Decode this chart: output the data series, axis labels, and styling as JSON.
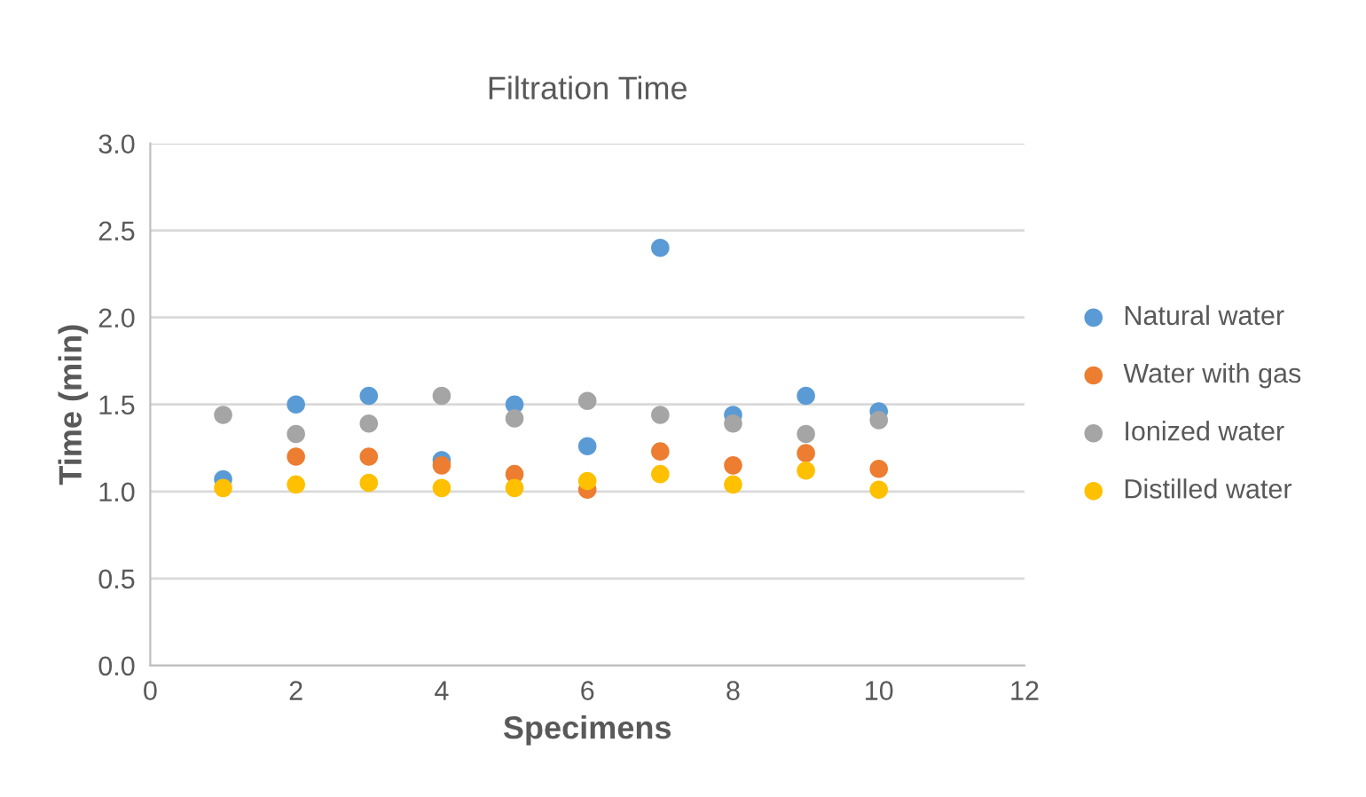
{
  "chart_data": {
    "type": "scatter",
    "title": "Filtration Time",
    "xlabel": "Specimens",
    "ylabel": "Time (min)",
    "xlim": [
      0,
      12
    ],
    "xticks": [
      0,
      2,
      4,
      6,
      8,
      10,
      12
    ],
    "ylim": [
      0,
      3.0
    ],
    "yticks": [
      {
        "value": 0,
        "label": "0.0"
      },
      {
        "value": 0.5,
        "label": "0.5"
      },
      {
        "value": 1.0,
        "label": "1.0"
      },
      {
        "value": 1.5,
        "label": "1.5"
      },
      {
        "value": 2.0,
        "label": "2.0"
      },
      {
        "value": 2.5,
        "label": "2.5"
      },
      {
        "value": 3.0,
        "label": "3.0"
      }
    ],
    "grid": "y",
    "legend": "right",
    "marker": "circle",
    "x": [
      1,
      2,
      3,
      4,
      5,
      6,
      7,
      8,
      9,
      10
    ],
    "series": [
      {
        "name": "Natural water",
        "color": "#5b9bd5",
        "values": [
          1.07,
          1.5,
          1.55,
          1.18,
          1.5,
          1.26,
          2.4,
          1.44,
          1.55,
          1.46
        ]
      },
      {
        "name": "Water with gas",
        "color": "#ed7d31",
        "values": [
          null,
          1.2,
          1.2,
          1.15,
          1.1,
          1.01,
          1.23,
          1.15,
          1.22,
          1.13
        ]
      },
      {
        "name": "Ionized water",
        "color": "#a5a5a5",
        "values": [
          1.44,
          1.33,
          1.39,
          1.55,
          1.42,
          1.52,
          1.44,
          1.39,
          1.33,
          1.41
        ]
      },
      {
        "name": "Distilled water",
        "color": "#ffc000",
        "values": [
          1.02,
          1.04,
          1.05,
          1.02,
          1.02,
          1.06,
          1.1,
          1.04,
          1.12,
          1.01
        ]
      }
    ]
  }
}
